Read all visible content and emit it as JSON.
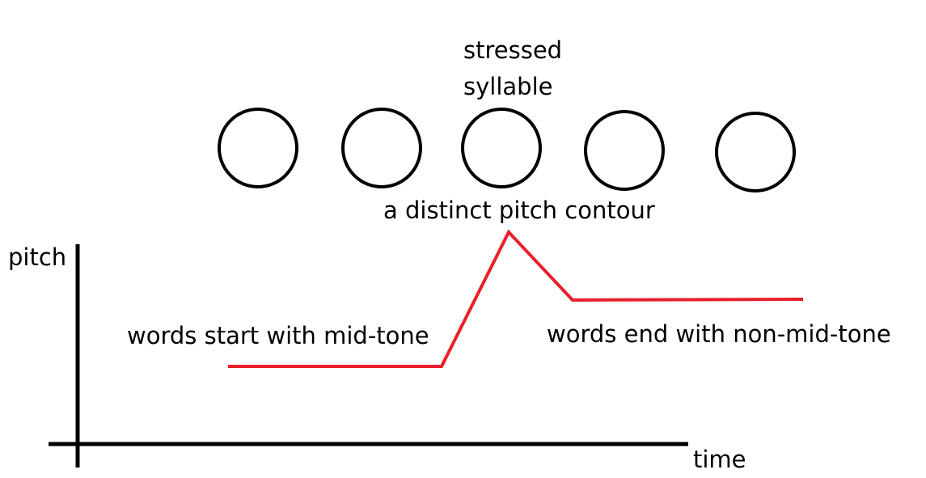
{
  "syllables": {
    "count": 5,
    "stressed_index": 2,
    "stressed_label_line1": "stressed",
    "stressed_label_line2": "syllable"
  },
  "contour": {
    "label": "a distinct pitch contour",
    "color": "#e8202a"
  },
  "axes": {
    "y_label": "pitch",
    "x_label": "time",
    "color": "#000000"
  },
  "annotations": {
    "start": "words start with mid-tone",
    "end": "words end with non-mid-tone"
  }
}
